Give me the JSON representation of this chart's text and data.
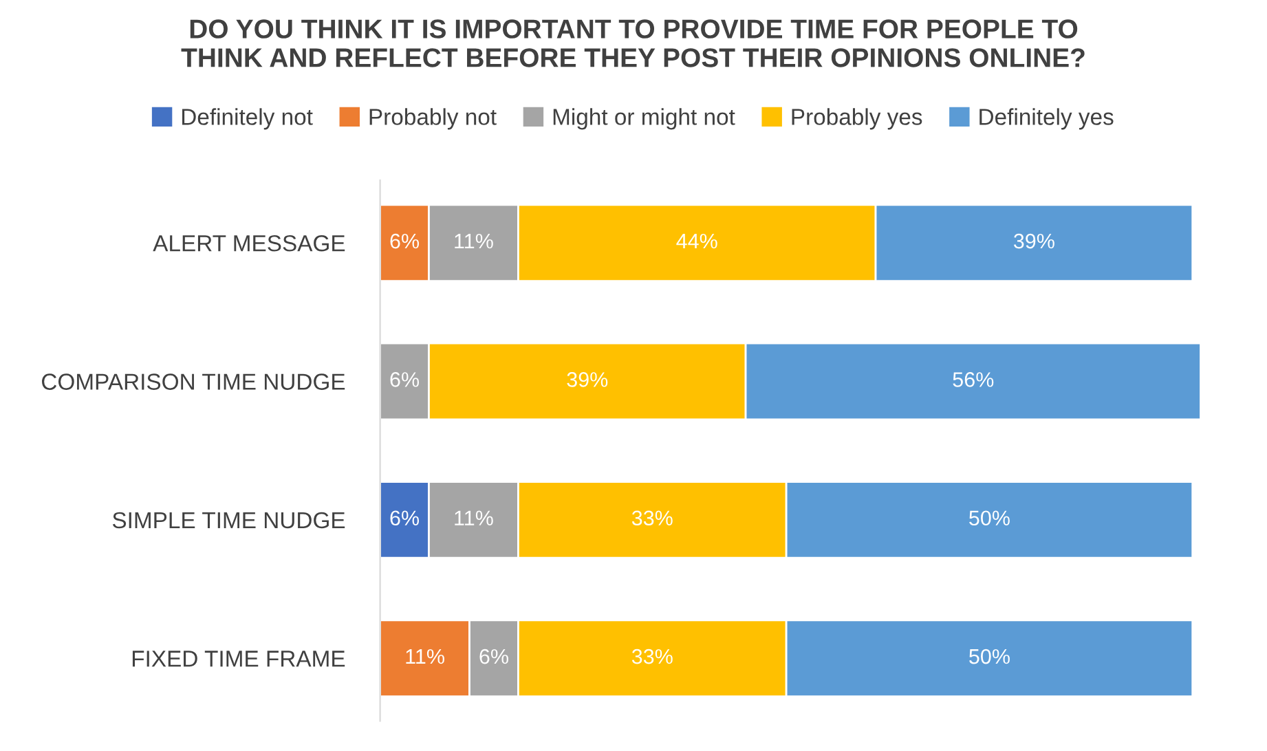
{
  "chart_data": {
    "type": "bar",
    "orientation": "horizontal",
    "stacked": true,
    "title": "DO YOU THINK IT IS IMPORTANT TO PROVIDE TIME FOR PEOPLE TO\nTHINK AND REFLECT BEFORE THEY POST THEIR OPINIONS ONLINE?",
    "categories": [
      "ALERT MESSAGE",
      "COMPARISON TIME NUDGE",
      "SIMPLE TIME NUDGE",
      "FIXED TIME FRAME"
    ],
    "series": [
      {
        "name": "Definitely not",
        "color": "#4472c4",
        "values": [
          null,
          null,
          6,
          null
        ],
        "value_labels": [
          null,
          null,
          "6%",
          null
        ]
      },
      {
        "name": "Probably not",
        "color": "#ed7d31",
        "values": [
          6,
          null,
          null,
          11
        ],
        "value_labels": [
          "6%",
          null,
          null,
          "11%"
        ]
      },
      {
        "name": "Might or might not",
        "color": "#a5a5a5",
        "values": [
          11,
          6,
          11,
          6
        ],
        "value_labels": [
          "11%",
          "6%",
          "11%",
          "6%"
        ]
      },
      {
        "name": "Probably yes",
        "color": "#ffc000",
        "values": [
          44,
          39,
          33,
          33
        ],
        "value_labels": [
          "44%",
          "39%",
          "33%",
          "33%"
        ]
      },
      {
        "name": "Definitely yes",
        "color": "#5b9bd5",
        "values": [
          39,
          56,
          50,
          50
        ],
        "value_labels": [
          "39%",
          "56%",
          "50%",
          "50%"
        ]
      }
    ],
    "legend": "top",
    "tick_labels": "y"
  }
}
